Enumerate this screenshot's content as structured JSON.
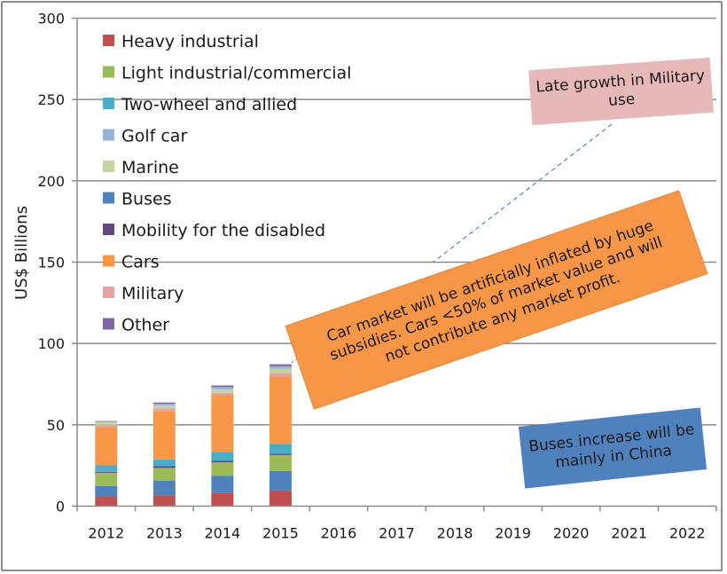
{
  "chart_data": {
    "type": "bar",
    "stacked": true,
    "title": "",
    "xlabel": "",
    "ylabel": "US$ Billions",
    "ylim": [
      0,
      300
    ],
    "yticks": [
      0,
      50,
      100,
      150,
      200,
      250,
      300
    ],
    "grid": true,
    "legend_position": "top-left",
    "categories": [
      "2012",
      "2013",
      "2014",
      "2015",
      "2016",
      "2017",
      "2018",
      "2019",
      "2020",
      "2021",
      "2022"
    ],
    "series": [
      {
        "name": "Heavy industrial",
        "color": "#c0504d",
        "values": [
          5.7,
          6.6,
          8.0,
          9.7,
          null,
          null,
          null,
          null,
          null,
          null,
          null
        ]
      },
      {
        "name": "Buses",
        "color": "#4f81bd",
        "values": [
          6.7,
          9.1,
          10.7,
          11.9,
          null,
          null,
          null,
          null,
          null,
          null,
          null
        ]
      },
      {
        "name": "Light industrial/commercial",
        "color": "#9bbb59",
        "values": [
          8.1,
          7.8,
          8.2,
          9.8,
          null,
          null,
          null,
          null,
          null,
          null,
          null
        ]
      },
      {
        "name": "Mobility for the disabled",
        "color": "#604a7b",
        "values": [
          0.6,
          1.2,
          0.9,
          0.9,
          null,
          null,
          null,
          null,
          null,
          null,
          null
        ]
      },
      {
        "name": "Two-wheel and allied",
        "color": "#4bacc6",
        "values": [
          4.0,
          4.0,
          5.6,
          6.0,
          null,
          null,
          null,
          null,
          null,
          null,
          null
        ]
      },
      {
        "name": "Cars",
        "color": "#f79646",
        "values": [
          23.5,
          29.6,
          34.8,
          41.3,
          null,
          null,
          null,
          null,
          null,
          null,
          null
        ]
      },
      {
        "name": "Military",
        "color": "#e6a1a0",
        "values": [
          1.4,
          1.7,
          1.5,
          2.2,
          null,
          null,
          null,
          null,
          null,
          null,
          null
        ]
      },
      {
        "name": "Marine",
        "color": "#c3d69b",
        "values": [
          1.5,
          1.9,
          2.1,
          2.7,
          null,
          null,
          null,
          null,
          null,
          null,
          null
        ]
      },
      {
        "name": "Golf car",
        "color": "#95b3d7",
        "values": [
          0.5,
          1.0,
          1.4,
          1.5,
          null,
          null,
          null,
          null,
          null,
          null,
          null
        ]
      },
      {
        "name": "Other",
        "color": "#8064a2",
        "values": [
          0.3,
          0.8,
          1.0,
          1.2,
          null,
          null,
          null,
          null,
          null,
          null,
          null
        ]
      }
    ],
    "totals": [
      52.3,
      63.7,
      74.2,
      87.2,
      null,
      null,
      null,
      null,
      null,
      null,
      null
    ],
    "legend_order": [
      "Heavy industrial",
      "Light industrial/commercial",
      "Two-wheel and allied",
      "Golf car",
      "Marine",
      "Buses",
      "Mobility for the disabled",
      "Cars",
      "Military",
      "Other"
    ],
    "annotations": [
      {
        "id": "military",
        "text": "Late growth in Military use",
        "color": "#e6b9b8"
      },
      {
        "id": "cars",
        "text": "Car market will be artificially inflated by huge subsidies. Cars <50% of market value and will not contribute any market profit.",
        "color": "#f79646"
      },
      {
        "id": "buses",
        "text": "Buses increase will be mainly in China",
        "color": "#4f81bd"
      }
    ]
  },
  "notes": {
    "military": "Late growth in Military use",
    "cars": "Car market will be artificially inflated by huge subsidies. Cars <50% of market value and will not contribute any market profit.",
    "buses": "Buses increase will be mainly in China"
  }
}
